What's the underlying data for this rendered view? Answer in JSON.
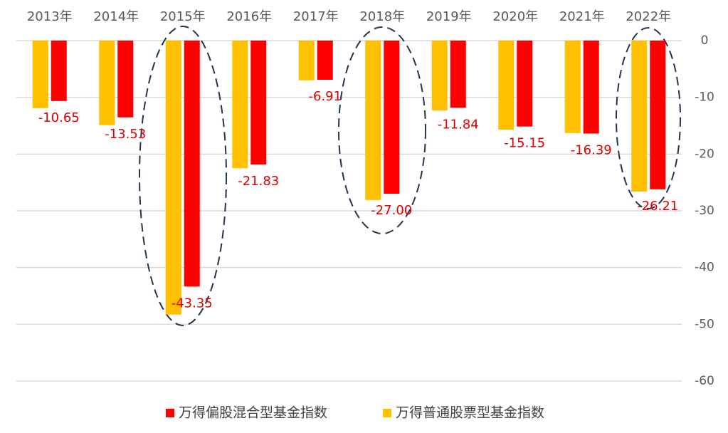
{
  "chart_data": {
    "type": "bar",
    "categories": [
      "2013年",
      "2014年",
      "2015年",
      "2016年",
      "2017年",
      "2018年",
      "2019年",
      "2020年",
      "2021年",
      "2022年"
    ],
    "series": [
      {
        "name": "万得偏股混合型基金指数",
        "color": "#ff0000",
        "values": [
          -10.65,
          -13.53,
          -43.35,
          -21.83,
          -6.91,
          -27.0,
          -11.84,
          -15.15,
          -16.39,
          -26.21
        ],
        "value_labels": [
          "-10.65",
          "-13.53",
          "-43.35",
          "-21.83",
          "-6.91",
          "-27.00",
          "-11.84",
          "-15.15",
          "-16.39",
          "-26.21"
        ]
      },
      {
        "name": "万得普通股票型基金指数",
        "color": "#ffc000",
        "values": [
          -11.9,
          -14.9,
          -48.3,
          -22.5,
          -7.0,
          -28.1,
          -12.3,
          -15.7,
          -16.3,
          -26.6
        ]
      }
    ],
    "ylim": [
      -60,
      0
    ],
    "yticks": [
      0,
      -10,
      -20,
      -30,
      -40,
      -50,
      -60
    ],
    "grid": true
  }
}
